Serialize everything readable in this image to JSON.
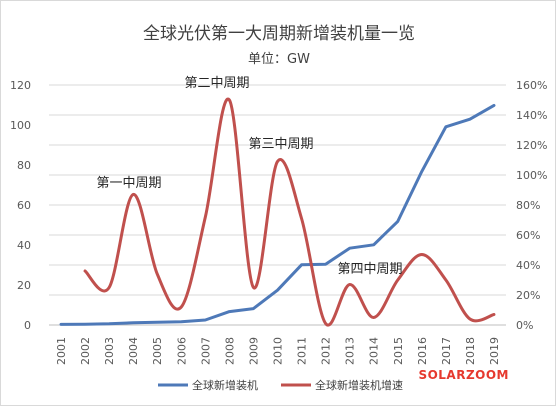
{
  "chart_data": {
    "type": "line",
    "title": "全球光伏第一大周期新增装机量一览",
    "subtitle": "单位：GW",
    "categories": [
      "2001",
      "2002",
      "2003",
      "2004",
      "2005",
      "2006",
      "2007",
      "2008",
      "2009",
      "2010",
      "2011",
      "2012",
      "2013",
      "2014",
      "2015",
      "2016",
      "2017",
      "2018",
      "2019"
    ],
    "series": [
      {
        "name": "全球新增装机",
        "axis": "left",
        "color": "#4e79b8",
        "values": [
          0.3,
          0.4,
          0.6,
          1.1,
          1.4,
          1.6,
          2.5,
          6.7,
          8.2,
          17.4,
          30.1,
          30.4,
          38.4,
          40.1,
          51.8,
          76.8,
          99.1,
          102.9,
          109.8
        ]
      },
      {
        "name": "全球新增装机增速",
        "axis": "right",
        "color": "#c0504d",
        "values": [
          null,
          0.36,
          0.25,
          0.87,
          0.34,
          0.12,
          0.72,
          1.5,
          0.25,
          1.09,
          0.71,
          0.01,
          0.27,
          0.05,
          0.3,
          0.47,
          0.3,
          0.04,
          0.07
        ]
      }
    ],
    "y_left": {
      "min": 0,
      "max": 120,
      "ticks": [
        "0",
        "20",
        "40",
        "60",
        "80",
        "100",
        "120"
      ]
    },
    "y_right": {
      "min": 0,
      "max": 1.6,
      "ticks": [
        "0%",
        "20%",
        "40%",
        "60%",
        "80%",
        "100%",
        "120%",
        "140%",
        "160%"
      ]
    },
    "annotations": [
      {
        "text": "第一中周期",
        "year": "2004"
      },
      {
        "text": "第二中周期",
        "year": "2008"
      },
      {
        "text": "第三中周期",
        "year": "2010"
      },
      {
        "text": "第四中周期",
        "year": "2015"
      }
    ],
    "legend_position": "bottom",
    "grid": true
  },
  "watermark": "SOLARZOOM"
}
